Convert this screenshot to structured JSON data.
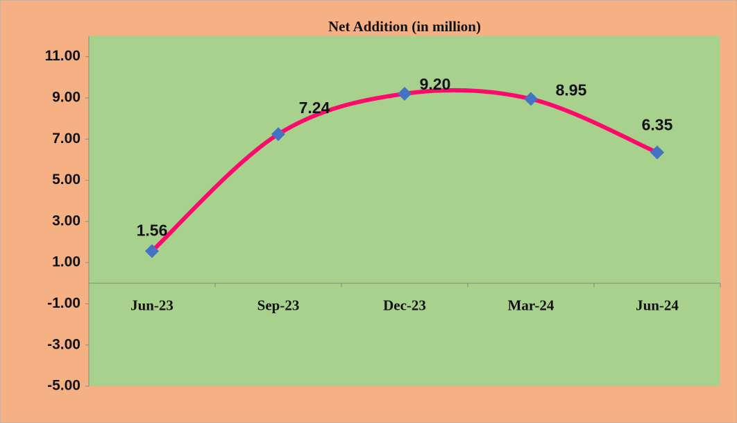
{
  "chart_data": {
    "type": "line",
    "title": "Net Addition (in million)",
    "categories": [
      "Jun-23",
      "Sep-23",
      "Dec-23",
      "Mar-24",
      "Jun-24"
    ],
    "series": [
      {
        "color": "#ff0a6c",
        "marker_color": "#4472c4",
        "values": [
          1.56,
          7.24,
          9.2,
          8.95,
          6.35
        ],
        "value_labels": [
          "1.56",
          "7.24",
          "9.20",
          "8.95",
          "6.35"
        ]
      }
    ],
    "ylim": [
      -5,
      12
    ],
    "yticks": [
      {
        "value": -5,
        "label": "-5.00"
      },
      {
        "value": -3,
        "label": "-3.00"
      },
      {
        "value": -1,
        "label": "-1.00"
      },
      {
        "value": 1,
        "label": "1.00"
      },
      {
        "value": 3,
        "label": "3.00"
      },
      {
        "value": 5,
        "label": "5.00"
      },
      {
        "value": 7,
        "label": "7.00"
      },
      {
        "value": 9,
        "label": "9.00"
      },
      {
        "value": 11,
        "label": "11.00"
      }
    ],
    "smooth": true,
    "grid": false
  }
}
